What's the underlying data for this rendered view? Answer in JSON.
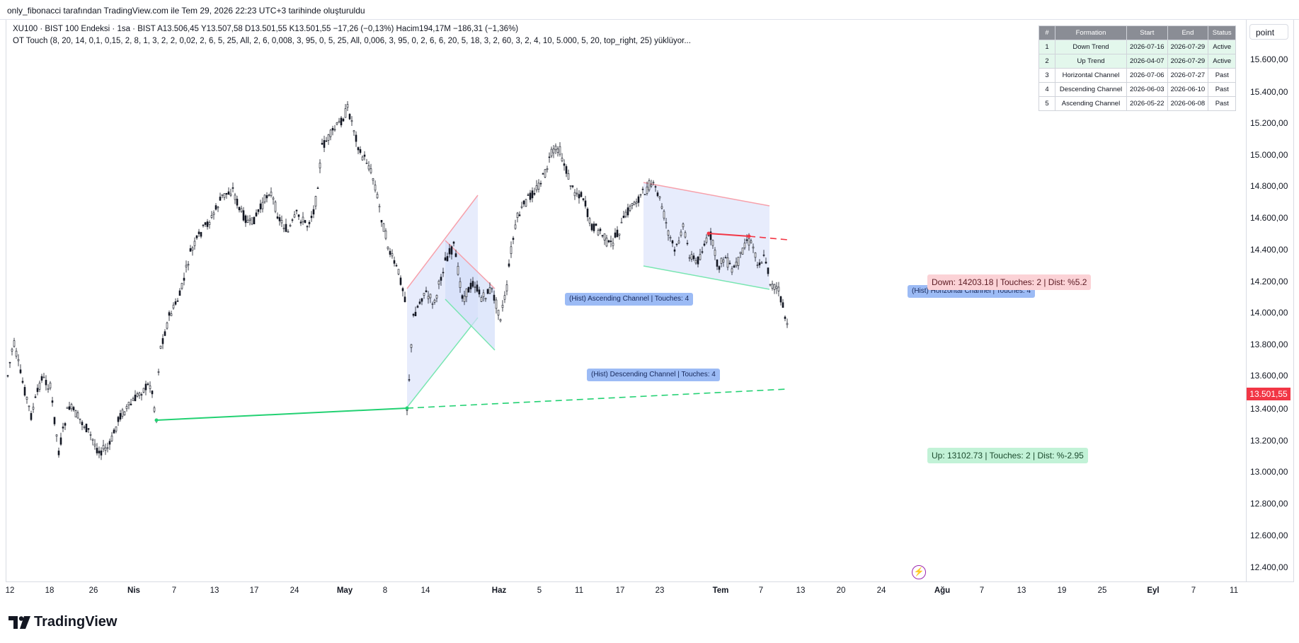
{
  "header": {
    "title": "only_fibonacci tarafından TradingView.com ile Tem 29, 2026 22:23 UTC+3 tarihinde oluşturuldu"
  },
  "legend": {
    "line1": "XU100 · BIST 100 Endeksi · 1sa · BIST  A13.506,45  Y13.507,58  D13.501,55  K13.501,55  −17,26 (−0,13%)  Hacim194,17M  −186,31 (−1,36%)",
    "line2": "OT Touch (8, 20, 14, 0,1, 0,15, 2, 8, 1, 3, 2, 2, 0,02, 2, 6, 5, 25, All, 2, 6, 0,008, 3, 95, 0, 5, 25, All, 0,006, 3, 95, 0, 2, 6, 6, 20, 5, 18, 3, 2, 60, 3, 2, 4, 10, 5.000, 5, 20, top_right, 25) yüklüyor..."
  },
  "price_axis": {
    "unit_button": "point",
    "labels": [
      "15.600,00",
      "15.400,00",
      "15.200,00",
      "15.000,00",
      "14.800,00",
      "14.600,00",
      "14.400,00",
      "14.200,00",
      "14.000,00",
      "13.800,00",
      "13.600,00",
      "13.400,00",
      "13.200,00",
      "13.000,00",
      "12.800,00",
      "12.600,00",
      "12.400,00"
    ],
    "current_price": "13.501,55",
    "current_price_color": "#f23645"
  },
  "time_axis": {
    "labels": [
      {
        "text": "12",
        "bold": false
      },
      {
        "text": "18",
        "bold": false
      },
      {
        "text": "26",
        "bold": false
      },
      {
        "text": "Nis",
        "bold": true
      },
      {
        "text": "7",
        "bold": false
      },
      {
        "text": "13",
        "bold": false
      },
      {
        "text": "17",
        "bold": false
      },
      {
        "text": "24",
        "bold": false
      },
      {
        "text": "May",
        "bold": true
      },
      {
        "text": "8",
        "bold": false
      },
      {
        "text": "14",
        "bold": false
      },
      {
        "text": "Haz",
        "bold": true
      },
      {
        "text": "5",
        "bold": false
      },
      {
        "text": "11",
        "bold": false
      },
      {
        "text": "17",
        "bold": false
      },
      {
        "text": "23",
        "bold": false
      },
      {
        "text": "Tem",
        "bold": true
      },
      {
        "text": "7",
        "bold": false
      },
      {
        "text": "13",
        "bold": false
      },
      {
        "text": "20",
        "bold": false
      },
      {
        "text": "24",
        "bold": false
      },
      {
        "text": "Ağu",
        "bold": true
      },
      {
        "text": "7",
        "bold": false
      },
      {
        "text": "13",
        "bold": false
      },
      {
        "text": "19",
        "bold": false
      },
      {
        "text": "25",
        "bold": false
      },
      {
        "text": "Eyl",
        "bold": true
      },
      {
        "text": "7",
        "bold": false
      },
      {
        "text": "11",
        "bold": false
      }
    ]
  },
  "formation_table": {
    "headers": [
      "#",
      "Formation",
      "Start",
      "End",
      "Status"
    ],
    "rows": [
      {
        "n": "1",
        "formation": "Down Trend",
        "start": "2026-07-16",
        "end": "2026-07-29",
        "status": "Active",
        "active": true
      },
      {
        "n": "2",
        "formation": "Up Trend",
        "start": "2026-04-07",
        "end": "2026-07-29",
        "status": "Active",
        "active": true
      },
      {
        "n": "3",
        "formation": "Horizontal Channel",
        "start": "2026-07-06",
        "end": "2026-07-27",
        "status": "Past",
        "active": false
      },
      {
        "n": "4",
        "formation": "Descending Channel",
        "start": "2026-06-03",
        "end": "2026-06-10",
        "status": "Past",
        "active": false
      },
      {
        "n": "5",
        "formation": "Ascending Channel",
        "start": "2026-05-22",
        "end": "2026-06-08",
        "status": "Past",
        "active": false
      }
    ]
  },
  "annotations": {
    "ascending": "(Hist) Ascending Channel | Touches: 4",
    "descending": "(Hist) Descending Channel | Touches: 4",
    "horizontal": "(Hist) Horizontal Channel | Touches: 4",
    "down": "Down: 14203.18 | Touches: 2 | Dist: %5.2",
    "up": "Up: 13102.73 | Touches: 2 | Dist: %-2.95"
  },
  "colors": {
    "candle": "#131722",
    "up_trend": "#22d172",
    "down_trend": "#f23645",
    "channel_fill": "#dde6fb",
    "channel_upper": "#f7a1ab",
    "channel_lower": "#79e6b2"
  },
  "footer": {
    "logo": "TradingView"
  },
  "icons": {
    "flash": "flash-icon",
    "logo": "tradingview-logo-icon"
  }
}
